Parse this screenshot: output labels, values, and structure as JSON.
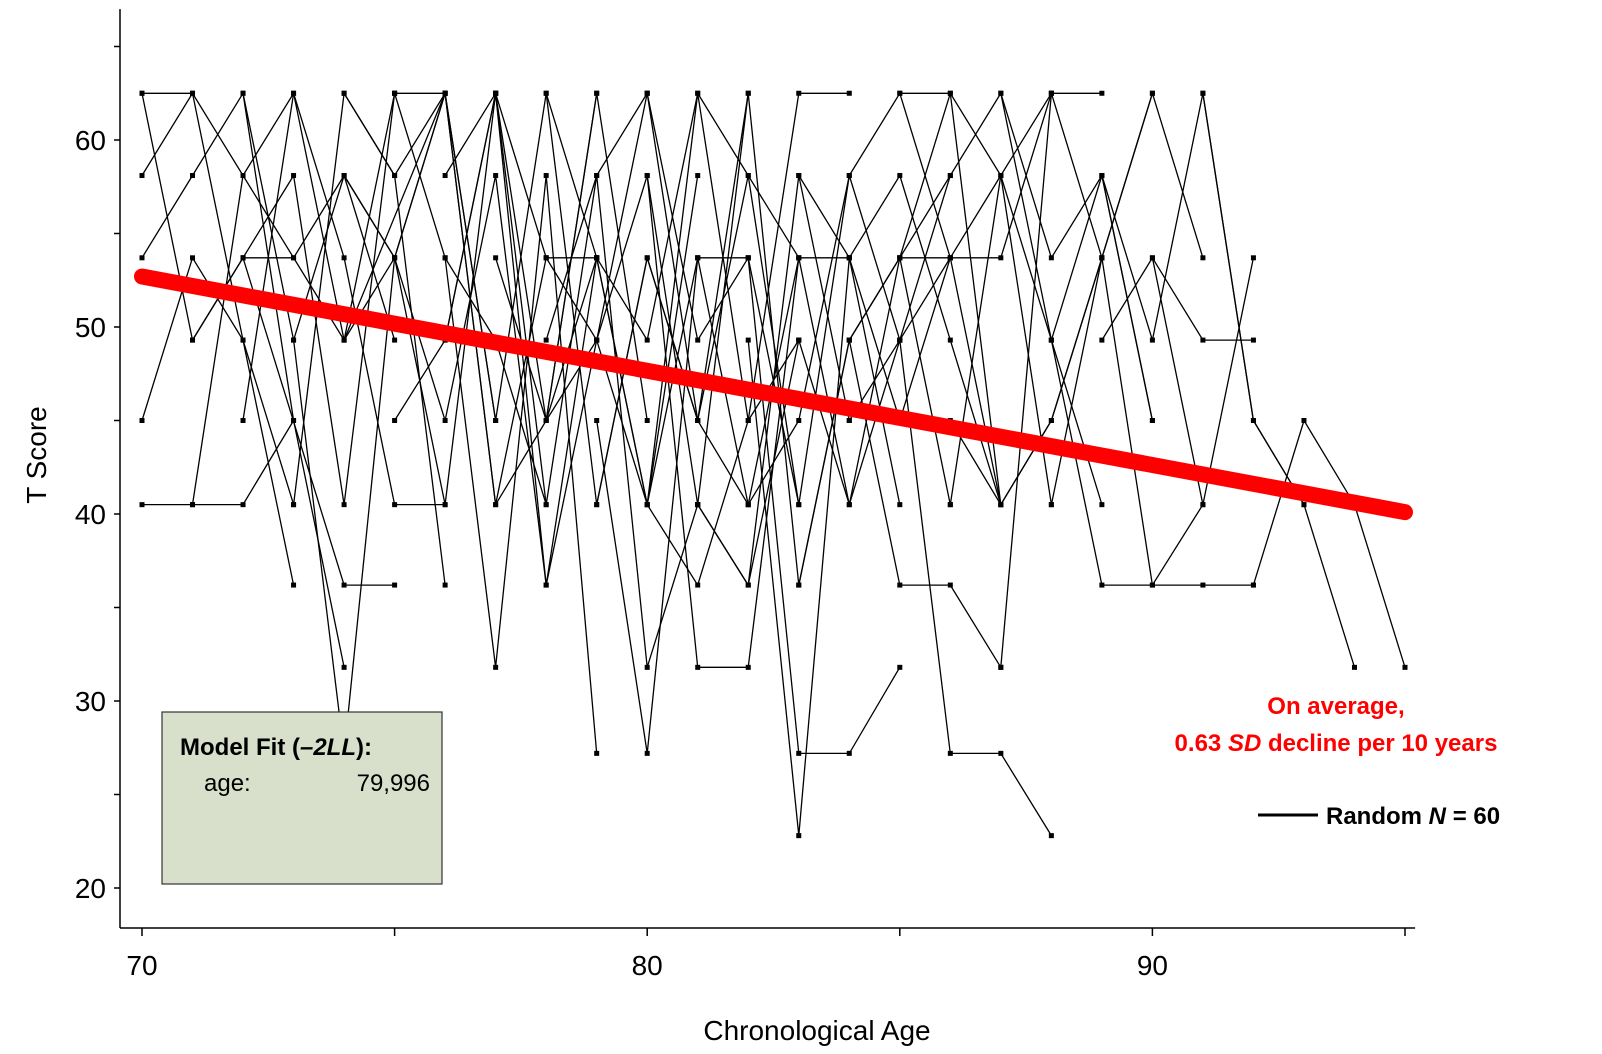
{
  "chart_data": {
    "type": "line",
    "xlabel": "Chronological Age",
    "ylabel": "T Score",
    "xlim": [
      69.5,
      95.2
    ],
    "ylim": [
      18.5,
      67
    ],
    "x_ticks": [
      70,
      80,
      90
    ],
    "y_ticks": [
      20,
      30,
      40,
      50,
      60
    ],
    "x_minor_ticks": [
      70,
      75,
      80,
      85,
      90,
      95
    ],
    "y_minor_ticks": [
      20,
      25,
      30,
      35,
      40,
      45,
      50,
      55,
      60,
      65
    ],
    "line_color": "#000000",
    "fit_color": "#ff0000",
    "box_color": "#d8e0cc",
    "fit_line": {
      "x": [
        70,
        95
      ],
      "y": [
        52.7,
        40.1
      ]
    },
    "annotation": {
      "line1": "On average,",
      "line2_value": "0.63",
      "line2_sd": "SD",
      "line2_rest": "decline per 10 years"
    },
    "legend": {
      "label": "Random",
      "n_symbol": "N",
      "n_value": "= 60"
    },
    "model_fit": {
      "title_prefix": "Model Fit (",
      "title_stat": "–2LL",
      "title_suffix": "):",
      "row_label": "age:",
      "row_value": "79,996"
    },
    "series": [
      {
        "x": [
          70,
          71,
          72,
          73
        ],
        "y": [
          62.5,
          62.5,
          49.3,
          40.5
        ]
      },
      {
        "x": [
          70,
          71,
          73,
          74,
          75
        ],
        "y": [
          58.1,
          62.5,
          53.7,
          58.1,
          49.3
        ]
      },
      {
        "x": [
          70,
          71,
          72,
          73,
          74
        ],
        "y": [
          53.7,
          58.1,
          62.5,
          45.0,
          31.8
        ]
      },
      {
        "x": [
          70,
          71,
          72,
          73
        ],
        "y": [
          45.0,
          53.7,
          49.3,
          36.2
        ]
      },
      {
        "x": [
          70,
          71,
          72,
          73
        ],
        "y": [
          40.5,
          40.5,
          40.5,
          45.0
        ]
      },
      {
        "x": [
          71,
          72,
          74,
          75
        ],
        "y": [
          49.3,
          53.7,
          36.2,
          36.2
        ]
      },
      {
        "x": [
          71,
          72,
          73,
          74,
          76
        ],
        "y": [
          40.5,
          58.1,
          62.5,
          49.3,
          62.5
        ]
      },
      {
        "x": [
          72,
          73,
          74,
          75,
          76,
          77
        ],
        "y": [
          53.7,
          58.1,
          40.5,
          62.5,
          53.7,
          49.3
        ]
      },
      {
        "x": [
          72,
          73,
          74,
          75,
          76
        ],
        "y": [
          45.0,
          62.5,
          53.7,
          40.5,
          40.5
        ]
      },
      {
        "x": [
          73,
          74,
          75,
          76
        ],
        "y": [
          40.5,
          62.5,
          58.1,
          36.2
        ]
      },
      {
        "x": [
          73,
          74,
          75,
          76,
          77
        ],
        "y": [
          49.3,
          27.2,
          53.7,
          62.5,
          45.0
        ]
      },
      {
        "x": [
          74,
          75,
          76,
          77,
          78
        ],
        "y": [
          58.1,
          53.7,
          62.5,
          40.5,
          53.7
        ]
      },
      {
        "x": [
          75,
          76,
          77,
          78,
          79
        ],
        "y": [
          62.5,
          62.5,
          45.0,
          62.5,
          53.7
        ]
      },
      {
        "x": [
          75,
          76,
          77,
          78
        ],
        "y": [
          45.0,
          49.3,
          62.5,
          40.5
        ]
      },
      {
        "x": [
          76,
          77,
          78,
          79,
          80
        ],
        "y": [
          58.1,
          62.5,
          36.2,
          49.3,
          62.5
        ]
      },
      {
        "x": [
          76,
          77,
          78,
          79
        ],
        "y": [
          53.7,
          31.8,
          58.1,
          27.2
        ]
      },
      {
        "x": [
          77,
          78,
          79,
          80,
          81
        ],
        "y": [
          62.5,
          53.7,
          49.3,
          40.5,
          58.1
        ]
      },
      {
        "x": [
          77,
          78,
          79,
          80
        ],
        "y": [
          53.7,
          45.0,
          62.5,
          45.0
        ]
      },
      {
        "x": [
          78,
          79,
          80,
          81
        ],
        "y": [
          49.3,
          58.1,
          31.8,
          40.5
        ]
      },
      {
        "x": [
          78,
          79,
          80,
          81,
          82
        ],
        "y": [
          62.5,
          40.5,
          53.7,
          45.0,
          62.5
        ]
      },
      {
        "x": [
          79,
          80,
          81,
          82
        ],
        "y": [
          45.0,
          27.2,
          53.7,
          40.5
        ]
      },
      {
        "x": [
          79,
          80,
          81,
          82,
          83
        ],
        "y": [
          53.7,
          49.3,
          62.5,
          58.1,
          40.5
        ]
      },
      {
        "x": [
          80,
          81,
          82,
          83
        ],
        "y": [
          58.1,
          31.8,
          31.8,
          53.7
        ]
      },
      {
        "x": [
          80,
          81,
          82,
          83,
          84
        ],
        "y": [
          40.5,
          36.2,
          45.0,
          62.5,
          62.5
        ]
      },
      {
        "x": [
          81,
          82,
          83,
          84,
          85
        ],
        "y": [
          53.7,
          53.7,
          27.2,
          27.2,
          31.8
        ]
      },
      {
        "x": [
          81,
          82,
          83,
          84
        ],
        "y": [
          40.5,
          36.2,
          58.1,
          45.0
        ]
      },
      {
        "x": [
          82,
          83,
          84,
          85
        ],
        "y": [
          49.3,
          22.8,
          53.7,
          40.5
        ]
      },
      {
        "x": [
          82,
          83,
          84,
          85,
          86
        ],
        "y": [
          40.5,
          45.0,
          58.1,
          62.5,
          53.7
        ]
      },
      {
        "x": [
          83,
          84,
          85,
          86
        ],
        "y": [
          49.3,
          40.5,
          53.7,
          58.1
        ]
      },
      {
        "x": [
          83,
          84,
          85,
          86,
          87
        ],
        "y": [
          36.2,
          49.3,
          36.2,
          36.2,
          31.8
        ]
      },
      {
        "x": [
          84,
          85,
          86,
          87
        ],
        "y": [
          53.7,
          58.1,
          49.3,
          40.5
        ]
      },
      {
        "x": [
          84,
          85,
          86,
          87,
          88
        ],
        "y": [
          45.0,
          49.3,
          27.2,
          27.2,
          22.8
        ]
      },
      {
        "x": [
          85,
          86,
          87,
          88
        ],
        "y": [
          62.5,
          62.5,
          58.1,
          40.5
        ]
      },
      {
        "x": [
          85,
          86,
          87,
          88,
          89
        ],
        "y": [
          53.7,
          53.7,
          53.7,
          62.5,
          62.5
        ]
      },
      {
        "x": [
          86,
          87,
          88,
          89
        ],
        "y": [
          40.5,
          58.1,
          49.3,
          40.5
        ]
      },
      {
        "x": [
          86,
          87,
          88,
          89,
          90
        ],
        "y": [
          45.0,
          40.5,
          45.0,
          53.7,
          62.5
        ]
      },
      {
        "x": [
          87,
          88,
          89,
          90
        ],
        "y": [
          62.5,
          53.7,
          58.1,
          45.0
        ]
      },
      {
        "x": [
          87,
          88,
          89,
          90,
          91
        ],
        "y": [
          31.8,
          62.5,
          53.7,
          36.2,
          40.5
        ]
      },
      {
        "x": [
          88,
          89,
          90,
          91,
          92
        ],
        "y": [
          49.3,
          36.2,
          36.2,
          36.2,
          36.2
        ]
      },
      {
        "x": [
          88,
          89,
          90,
          91
        ],
        "y": [
          40.5,
          53.7,
          62.5,
          53.7
        ]
      },
      {
        "x": [
          89,
          90,
          91,
          92
        ],
        "y": [
          49.3,
          53.7,
          40.5,
          53.7
        ]
      },
      {
        "x": [
          89,
          90,
          91,
          92,
          93
        ],
        "y": [
          58.1,
          49.3,
          62.5,
          45.0,
          40.5
        ]
      },
      {
        "x": [
          90,
          91,
          92
        ],
        "y": [
          53.7,
          49.3,
          49.3
        ]
      },
      {
        "x": [
          91,
          92,
          93,
          94
        ],
        "y": [
          62.5,
          45.0,
          40.5,
          31.8
        ]
      },
      {
        "x": [
          92,
          93,
          94,
          95
        ],
        "y": [
          36.2,
          45.0,
          40.5,
          31.8
        ]
      },
      {
        "x": [
          70,
          71,
          72,
          73,
          74,
          75
        ],
        "y": [
          62.5,
          49.3,
          53.7,
          53.7,
          49.3,
          62.5
        ]
      },
      {
        "x": [
          72,
          73,
          74,
          75,
          76,
          77
        ],
        "y": [
          62.5,
          49.3,
          58.1,
          53.7,
          40.5,
          62.5
        ]
      },
      {
        "x": [
          74,
          75,
          76,
          77,
          78,
          79
        ],
        "y": [
          62.5,
          58.1,
          62.5,
          40.5,
          45.0,
          62.5
        ]
      },
      {
        "x": [
          76,
          77,
          78,
          79,
          80,
          81
        ],
        "y": [
          49.3,
          62.5,
          45.0,
          53.7,
          40.5,
          53.7
        ]
      },
      {
        "x": [
          77,
          78,
          79,
          80,
          81,
          82
        ],
        "y": [
          49.3,
          40.5,
          58.1,
          62.5,
          49.3,
          53.7
        ]
      },
      {
        "x": [
          78,
          79,
          80,
          81,
          82,
          83
        ],
        "y": [
          53.7,
          53.7,
          40.5,
          62.5,
          45.0,
          49.3
        ]
      },
      {
        "x": [
          79,
          80,
          81,
          82,
          83,
          84
        ],
        "y": [
          40.5,
          53.7,
          45.0,
          40.5,
          53.7,
          53.7
        ]
      },
      {
        "x": [
          80,
          81,
          82,
          83,
          84,
          85
        ],
        "y": [
          62.5,
          45.0,
          58.1,
          53.7,
          40.5,
          49.3
        ]
      },
      {
        "x": [
          81,
          82,
          83,
          84,
          85,
          86
        ],
        "y": [
          40.5,
          62.5,
          36.2,
          49.3,
          53.7,
          40.5
        ]
      },
      {
        "x": [
          82,
          83,
          84,
          85,
          86,
          87
        ],
        "y": [
          53.7,
          40.5,
          58.1,
          49.3,
          53.7,
          40.5
        ]
      },
      {
        "x": [
          83,
          84,
          85,
          86,
          87,
          88
        ],
        "y": [
          58.1,
          53.7,
          45.0,
          53.7,
          58.1,
          62.5
        ]
      },
      {
        "x": [
          84,
          85,
          86,
          87,
          88,
          89
        ],
        "y": [
          49.3,
          53.7,
          62.5,
          40.5,
          45.0,
          53.7
        ]
      },
      {
        "x": [
          85,
          86,
          87,
          88,
          89,
          90
        ],
        "y": [
          49.3,
          58.1,
          62.5,
          49.3,
          58.1,
          45.0
        ]
      },
      {
        "x": [
          78,
          79,
          80,
          81,
          82,
          83
        ],
        "y": [
          45.0,
          49.3,
          58.1,
          40.5,
          36.2,
          49.3
        ]
      },
      {
        "x": [
          74,
          75,
          76,
          77,
          78,
          79
        ],
        "y": [
          49.3,
          53.7,
          45.0,
          58.1,
          36.2,
          53.7
        ]
      }
    ]
  }
}
